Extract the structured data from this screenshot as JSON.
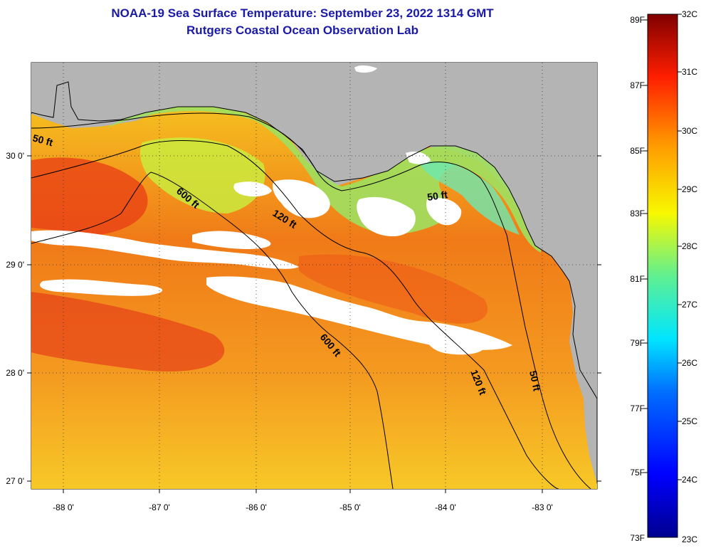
{
  "title": {
    "line1": "NOAA-19 Sea Surface Temperature:  September 23, 2022 1314 GMT",
    "line2": "Rutgers Coastal Ocean Observation Lab"
  },
  "axes": {
    "latitude_labels": [
      "30 0'",
      "29 0'",
      "28 0'",
      "27 0'"
    ],
    "longitude_labels": [
      "-88 0'",
      "-87 0'",
      "-86 0'",
      "-85 0'",
      "-84 0'",
      "-83 0'"
    ]
  },
  "contours": {
    "label_50_west": "50 ft",
    "label_600_north": "600 ft",
    "label_120_north": "120 ft",
    "label_50_east": "50 ft",
    "label_600_south": "600 ft",
    "label_120_south": "120 ft",
    "label_50_south": "50 ft"
  },
  "colorbar": {
    "fahrenheit": [
      "89F",
      "87F",
      "85F",
      "83F",
      "81F",
      "79F",
      "77F",
      "75F",
      "73F"
    ],
    "celsius": [
      "32C",
      "31C",
      "30C",
      "29C",
      "28C",
      "27C",
      "26C",
      "25C",
      "24C",
      "23C"
    ]
  },
  "colors": {
    "title": "#1a1aa6",
    "land": "#b4b4b4",
    "cloud": "#ffffff"
  }
}
